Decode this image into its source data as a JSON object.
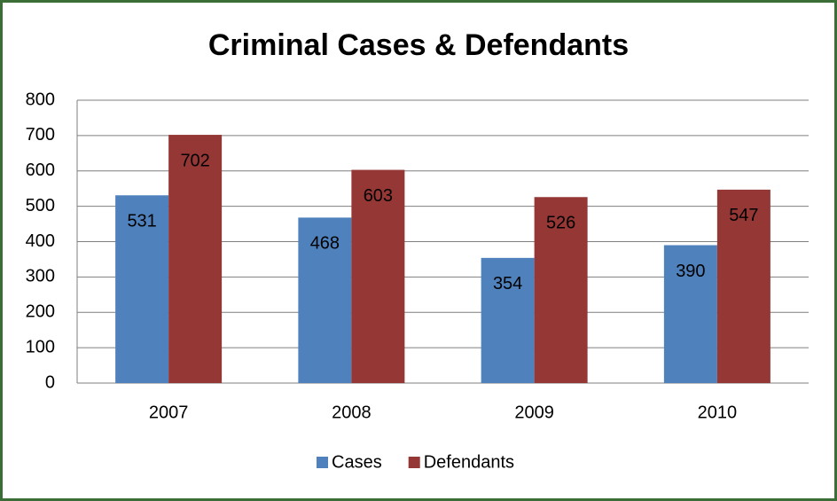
{
  "chart_data": {
    "type": "bar",
    "title": "Criminal Cases & Defendants",
    "categories": [
      "2007",
      "2008",
      "2009",
      "2010"
    ],
    "series": [
      {
        "name": "Cases",
        "color": "#4f81bd",
        "values": [
          531,
          468,
          354,
          390
        ]
      },
      {
        "name": "Defendants",
        "color": "#953735",
        "values": [
          702,
          603,
          526,
          547
        ]
      }
    ],
    "ylim": [
      0,
      800
    ],
    "yticks": [
      0,
      100,
      200,
      300,
      400,
      500,
      600,
      700,
      800
    ],
    "grid": true,
    "legend": "bottom"
  }
}
